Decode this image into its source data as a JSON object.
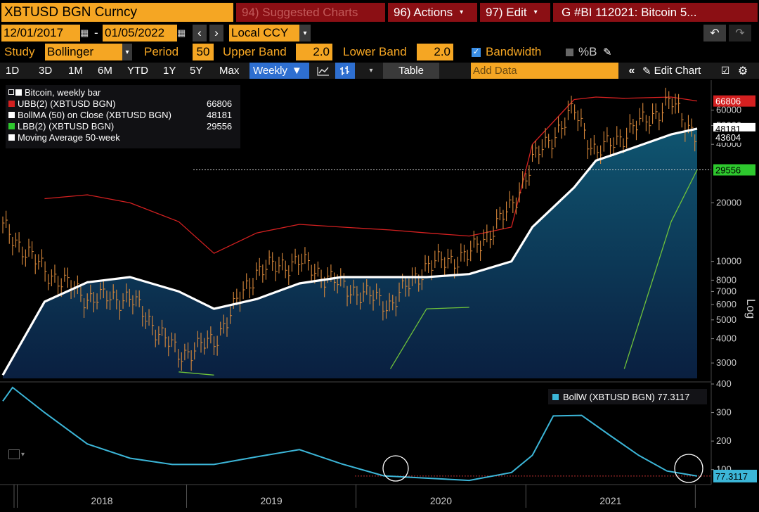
{
  "header": {
    "ticker": "XBTUSD BGN Curncy",
    "suggested": "94) Suggested Charts",
    "actions": "96) Actions",
    "edit": "97) Edit",
    "title": "G #BI 112021: Bitcoin 5..."
  },
  "range": {
    "start": "12/01/2017",
    "end": "01/05/2022",
    "currency": "Local CCY"
  },
  "study": {
    "label": "Study",
    "value": "Bollinger",
    "period_label": "Period",
    "period_value": "50",
    "upper_label": "Upper Band",
    "upper_value": "2.0",
    "lower_label": "Lower Band",
    "lower_value": "2.0",
    "bandwidth_label": "Bandwidth",
    "percent_b_label": "%B"
  },
  "toolbar": {
    "periods": [
      "1D",
      "3D",
      "1M",
      "6M",
      "YTD",
      "1Y",
      "5Y",
      "Max"
    ],
    "frequency": "Weekly",
    "table_label": "Table",
    "add_data_placeholder": "Add Data",
    "edit_chart_label": "Edit Chart"
  },
  "colors": {
    "ubb": "#d42020",
    "ma": "#ffffff",
    "lbb": "#6fc23a",
    "candles": "#d9893b",
    "fill_top": "#0f5570",
    "fill_bottom": "#0a1f40",
    "bandwidth": "#3cb6d8",
    "accent": "#f5a623"
  },
  "legend": {
    "title": "Bitcoin, weekly bar",
    "rows": [
      {
        "label": "UBB(2) (XBTUSD BGN)",
        "value": "66806"
      },
      {
        "label": "BollMA (50)  on Close (XBTUSD BGN)",
        "value": "48181"
      },
      {
        "label": "LBB(2) (XBTUSD BGN)",
        "value": "29556"
      },
      {
        "label": "Moving Average 50-week",
        "value": ""
      }
    ],
    "bandwidth_label": "BollW (XBTUSD BGN) 77.3117"
  },
  "axis": {
    "log_label": "Log",
    "tag_ubb": "66806",
    "tag_ma": "48181",
    "tag_price": "43604",
    "tag_lbb": "29556",
    "tag_bw": "77.3117"
  },
  "chart_data": [
    {
      "type": "line",
      "title": "Bitcoin, weekly bar",
      "scale": "log",
      "ylim": [
        2500,
        80000
      ],
      "yticks": [
        3000,
        4000,
        5000,
        6000,
        7000,
        8000,
        10000,
        20000,
        40000,
        50000,
        60000
      ],
      "x": [
        "2017-12-01",
        "2018-03-01",
        "2018-06-01",
        "2018-09-01",
        "2018-12-15",
        "2019-03-01",
        "2019-06-01",
        "2019-09-01",
        "2019-12-01",
        "2020-03-15",
        "2020-06-01",
        "2020-09-01",
        "2020-12-01",
        "2021-01-15",
        "2021-04-15",
        "2021-06-01",
        "2021-08-01",
        "2021-11-10",
        "2022-01-05"
      ],
      "series": [
        {
          "name": "Bitcoin, weekly bar",
          "values": [
            15000,
            9000,
            6500,
            6500,
            3300,
            3900,
            9000,
            10000,
            7500,
            6000,
            9500,
            10800,
            19000,
            33000,
            60000,
            36000,
            45000,
            66000,
            43604
          ]
        },
        {
          "name": "UBB(2) (XBTUSD BGN)",
          "values": [
            null,
            21000,
            22000,
            20000,
            16000,
            11000,
            14000,
            15500,
            15000,
            14500,
            14000,
            13500,
            15000,
            40000,
            68000,
            70000,
            69000,
            70000,
            66806
          ]
        },
        {
          "name": "BollMA (50)  on Close (XBTUSD BGN)",
          "values": [
            2600,
            6200,
            7800,
            8300,
            7000,
            5700,
            6400,
            7700,
            8300,
            8300,
            8300,
            8600,
            10000,
            15000,
            24000,
            33000,
            37000,
            45000,
            48181
          ]
        },
        {
          "name": "LBB(2) (XBTUSD BGN)",
          "values": [
            null,
            null,
            null,
            null,
            2700,
            2600,
            null,
            null,
            null,
            2800,
            5700,
            5800,
            null,
            null,
            null,
            null,
            2800,
            16000,
            29556
          ]
        }
      ],
      "last": {
        "price": 43604,
        "ubb": 66806,
        "ma": 48181,
        "lbb": 29556
      }
    },
    {
      "type": "line",
      "title": "",
      "ylim": [
        50,
        400
      ],
      "yticks": [
        100,
        200,
        300,
        400
      ],
      "xlabels": [
        "2018",
        "2019",
        "2020",
        "2021"
      ],
      "series": [
        {
          "name": "BollW (XBTUSD BGN)",
          "x": [
            "2017-12-01",
            "2017-12-22",
            "2018-03-01",
            "2018-06-01",
            "2018-09-01",
            "2018-12-01",
            "2019-03-01",
            "2019-06-01",
            "2019-09-01",
            "2019-12-01",
            "2020-03-01",
            "2020-06-01",
            "2020-09-01",
            "2020-12-01",
            "2021-01-15",
            "2021-03-01",
            "2021-05-01",
            "2021-07-01",
            "2021-09-01",
            "2021-11-01",
            "2022-01-05"
          ],
          "values": [
            340,
            388,
            300,
            190,
            140,
            118,
            118,
            145,
            170,
            120,
            78,
            70,
            62,
            90,
            150,
            288,
            290,
            220,
            150,
            95,
            77.3117
          ]
        }
      ],
      "reference_line": 77.3117,
      "last": 77.3117
    }
  ]
}
